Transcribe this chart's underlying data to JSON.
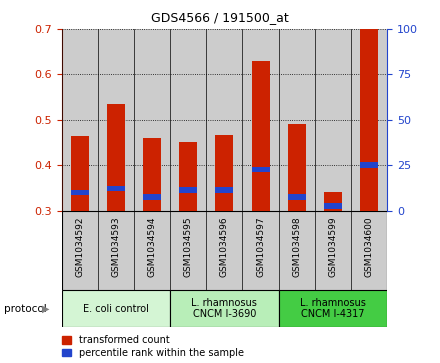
{
  "title": "GDS4566 / 191500_at",
  "samples": [
    "GSM1034592",
    "GSM1034593",
    "GSM1034594",
    "GSM1034595",
    "GSM1034596",
    "GSM1034597",
    "GSM1034598",
    "GSM1034599",
    "GSM1034600"
  ],
  "red_values": [
    0.465,
    0.535,
    0.46,
    0.45,
    0.467,
    0.63,
    0.49,
    0.34,
    0.7
  ],
  "blue_values": [
    0.34,
    0.348,
    0.33,
    0.345,
    0.345,
    0.39,
    0.33,
    0.31,
    0.4
  ],
  "ylim_left": [
    0.3,
    0.7
  ],
  "ylim_right": [
    0,
    100
  ],
  "yticks_left": [
    0.3,
    0.4,
    0.5,
    0.6,
    0.7
  ],
  "yticks_right": [
    0,
    25,
    50,
    75,
    100
  ],
  "protocols": [
    {
      "label": "E. coli control",
      "start": 0,
      "end": 3,
      "color": "#d4f5d4"
    },
    {
      "label": "L. rhamnosus\nCNCM I-3690",
      "start": 3,
      "end": 6,
      "color": "#b8eeb8"
    },
    {
      "label": "L. rhamnosus\nCNCM I-4317",
      "start": 6,
      "end": 9,
      "color": "#44cc44"
    }
  ],
  "red_color": "#cc2200",
  "blue_color": "#2244cc",
  "bar_bg_color": "#cccccc",
  "left_tick_color": "#cc2200",
  "right_tick_color": "#2244cc",
  "bar_width": 0.5,
  "blue_bar_height": 0.012
}
